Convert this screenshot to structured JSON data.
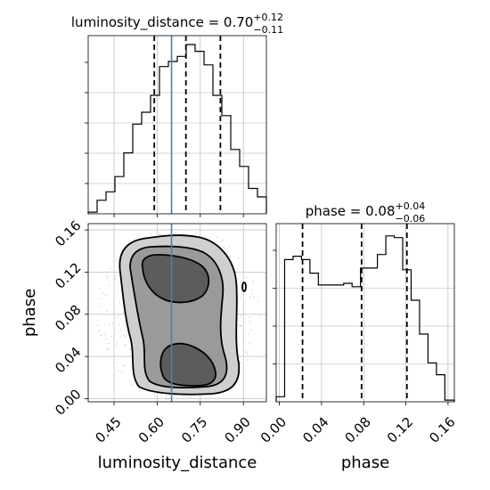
{
  "chart_data": {
    "type": "corner",
    "parameters": [
      {
        "name": "luminosity_distance",
        "label": "luminosity_distance",
        "title_main": "luminosity_distance = 0.70",
        "title_plus": "+0.12",
        "title_minus": "−0.11",
        "range": [
          0.36,
          0.98
        ],
        "ticks": [
          0.45,
          0.6,
          0.75,
          0.9
        ],
        "tick_labels": [
          "0.45",
          "0.60",
          "0.75",
          "0.90"
        ],
        "quantiles": [
          0.59,
          0.7,
          0.82
        ],
        "truth": 0.65,
        "hist_edges": [
          0.36,
          0.391,
          0.422,
          0.453,
          0.484,
          0.515,
          0.546,
          0.577,
          0.608,
          0.639,
          0.67,
          0.701,
          0.732,
          0.763,
          0.794,
          0.825,
          0.856,
          0.887,
          0.918,
          0.949,
          0.98
        ],
        "hist_heights": [
          0.01,
          0.08,
          0.13,
          0.22,
          0.36,
          0.53,
          0.6,
          0.7,
          0.87,
          0.9,
          0.93,
          1.0,
          0.96,
          0.88,
          0.7,
          0.58,
          0.38,
          0.28,
          0.15,
          0.1
        ]
      },
      {
        "name": "phase",
        "label": "phase",
        "title_main": "phase = 0.08",
        "title_plus": "+0.04",
        "title_minus": "−0.06",
        "range": [
          -0.003,
          0.166
        ],
        "ticks": [
          0.0,
          0.04,
          0.08,
          0.12,
          0.16
        ],
        "tick_labels": [
          "0.00",
          "0.04",
          "0.08",
          "0.12",
          "0.16"
        ],
        "quantiles": [
          0.022,
          0.078,
          0.121
        ],
        "hist_edges": [
          -0.003,
          0.005,
          0.013,
          0.021,
          0.029,
          0.037,
          0.045,
          0.053,
          0.061,
          0.069,
          0.077,
          0.085,
          0.093,
          0.101,
          0.109,
          0.117,
          0.125,
          0.133,
          0.141,
          0.149,
          0.157,
          0.166
        ],
        "hist_heights": [
          0.03,
          0.84,
          0.86,
          0.84,
          0.76,
          0.69,
          0.69,
          0.69,
          0.7,
          0.68,
          0.79,
          0.79,
          0.87,
          0.98,
          0.97,
          0.78,
          0.6,
          0.4,
          0.23,
          0.16,
          0.01
        ]
      }
    ]
  }
}
